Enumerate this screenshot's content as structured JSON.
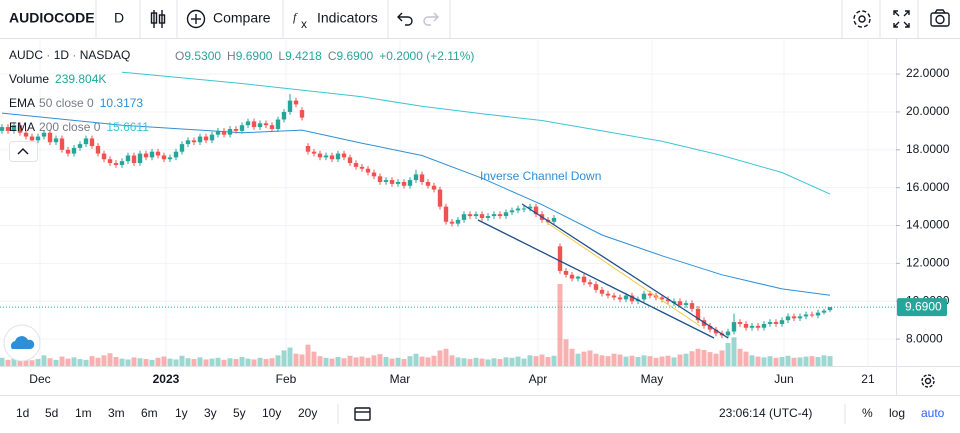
{
  "toolbar": {
    "symbol": "AUDIOCODE",
    "interval": "D",
    "compare": "Compare",
    "indicators": "Indicators"
  },
  "legend": {
    "symbol": "AUDC",
    "interval": "1D",
    "exchange": "NASDAQ",
    "ohlc": [
      {
        "key": "O",
        "value": "9.5300"
      },
      {
        "key": "H",
        "value": "9.6900"
      },
      {
        "key": "L",
        "value": "9.4218"
      },
      {
        "key": "C",
        "value": "9.6900"
      }
    ],
    "change": "+0.2000 (+2.11%)",
    "volume": {
      "name": "Volume",
      "value": "239.804K"
    },
    "indicators": [
      {
        "name": "EMA",
        "params": "50 close 0",
        "value": "10.3173",
        "color": "#2e8fd8"
      },
      {
        "name": "EMA",
        "params": "200 close 0",
        "value": "15.6611",
        "color": "#3cc6d4"
      }
    ]
  },
  "chart_data": {
    "type": "candlestick",
    "up_color": "#26a69a",
    "down_color": "#ef5350",
    "grid": true,
    "ylim": [
      6.58,
      23.8
    ],
    "yticks": [
      {
        "value": 8,
        "label": "8.0000"
      },
      {
        "value": 10,
        "label": "10.0000"
      },
      {
        "value": 12,
        "label": "12.0000"
      },
      {
        "value": 14,
        "label": "14.0000"
      },
      {
        "value": 16,
        "label": "16.0000"
      },
      {
        "value": 18,
        "label": "18.0000"
      },
      {
        "value": 20,
        "label": "20.0000"
      },
      {
        "value": 22,
        "label": "22.0000"
      }
    ],
    "xlim": [
      -0.333,
      149
    ],
    "xticks": [
      {
        "value": 6.33,
        "label": "Dec"
      },
      {
        "value": 27.33,
        "label": "2023"
      },
      {
        "value": 47.33,
        "label": "Feb"
      },
      {
        "value": 66.33,
        "label": "Mar"
      },
      {
        "value": 89.33,
        "label": "Apr"
      },
      {
        "value": 108.33,
        "label": "May"
      },
      {
        "value": 130.33,
        "label": "Jun"
      },
      {
        "value": 144.33,
        "label": "21"
      }
    ],
    "ohlc": [
      [
        19.0,
        19.35,
        18.85,
        19.2
      ],
      [
        19.2,
        19.35,
        18.85,
        19.0
      ],
      [
        19.0,
        19.45,
        18.85,
        19.3
      ],
      [
        19.3,
        19.45,
        18.75,
        18.9
      ],
      [
        18.9,
        19.05,
        18.55,
        18.7
      ],
      [
        18.7,
        18.85,
        18.35,
        18.5
      ],
      [
        18.5,
        18.85,
        18.35,
        18.7
      ],
      [
        18.7,
        19.05,
        18.55,
        18.9
      ],
      [
        18.9,
        19.05,
        18.25,
        18.4
      ],
      [
        18.4,
        18.75,
        18.25,
        18.6
      ],
      [
        18.6,
        18.75,
        17.85,
        18.0
      ],
      [
        18.0,
        18.15,
        17.65,
        17.8
      ],
      [
        17.8,
        18.25,
        17.65,
        18.1
      ],
      [
        18.1,
        18.45,
        17.95,
        18.3
      ],
      [
        18.3,
        18.75,
        18.15,
        18.6
      ],
      [
        18.6,
        18.75,
        18.05,
        18.2
      ],
      [
        18.2,
        18.35,
        17.65,
        17.8
      ],
      [
        17.8,
        17.95,
        17.35,
        17.5
      ],
      [
        17.5,
        17.65,
        17.15,
        17.3
      ],
      [
        17.3,
        17.45,
        17.05,
        17.2
      ],
      [
        17.2,
        17.55,
        17.05,
        17.4
      ],
      [
        17.4,
        17.85,
        17.25,
        17.7
      ],
      [
        17.7,
        17.85,
        17.15,
        17.3
      ],
      [
        17.3,
        17.95,
        17.15,
        17.8
      ],
      [
        17.8,
        17.95,
        17.45,
        17.6
      ],
      [
        17.6,
        18.05,
        17.45,
        17.9
      ],
      [
        17.9,
        18.05,
        17.55,
        17.7
      ],
      [
        17.7,
        17.85,
        17.35,
        17.5
      ],
      [
        17.5,
        17.75,
        17.35,
        17.6
      ],
      [
        17.6,
        18.05,
        17.45,
        17.9
      ],
      [
        17.9,
        18.45,
        17.75,
        18.3
      ],
      [
        18.3,
        18.65,
        18.15,
        18.5
      ],
      [
        18.5,
        18.65,
        18.25,
        18.4
      ],
      [
        18.4,
        18.85,
        18.25,
        18.7
      ],
      [
        18.7,
        18.85,
        18.35,
        18.5
      ],
      [
        18.5,
        18.95,
        18.35,
        18.8
      ],
      [
        18.8,
        19.15,
        18.65,
        19.0
      ],
      [
        19.0,
        19.15,
        18.65,
        18.8
      ],
      [
        18.8,
        19.25,
        18.65,
        19.1
      ],
      [
        19.1,
        19.25,
        18.85,
        19.0
      ],
      [
        19.0,
        19.45,
        18.85,
        19.3
      ],
      [
        19.3,
        19.65,
        19.15,
        19.5
      ],
      [
        19.5,
        19.65,
        19.05,
        19.2
      ],
      [
        19.2,
        19.55,
        19.05,
        19.4
      ],
      [
        19.4,
        19.55,
        19.15,
        19.3
      ],
      [
        19.3,
        19.45,
        18.95,
        19.1
      ],
      [
        19.1,
        19.75,
        18.95,
        19.6
      ],
      [
        19.6,
        20.15,
        19.45,
        20.0
      ],
      [
        20.0,
        20.95,
        19.85,
        20.6
      ],
      [
        20.6,
        20.75,
        20.25,
        20.4
      ],
      [
        20.1,
        20.25,
        19.55,
        19.7
      ],
      [
        18.2,
        18.35,
        17.75,
        17.9
      ],
      [
        17.9,
        18.05,
        17.65,
        17.8
      ],
      [
        17.8,
        17.95,
        17.45,
        17.6
      ],
      [
        17.6,
        17.85,
        17.45,
        17.7
      ],
      [
        17.7,
        17.85,
        17.35,
        17.5
      ],
      [
        17.5,
        17.95,
        17.35,
        17.8
      ],
      [
        17.8,
        17.95,
        17.45,
        17.6
      ],
      [
        17.6,
        17.75,
        17.15,
        17.3
      ],
      [
        17.3,
        17.45,
        16.95,
        17.1
      ],
      [
        17.1,
        17.25,
        16.85,
        17.0
      ],
      [
        17.0,
        17.15,
        16.65,
        16.8
      ],
      [
        16.8,
        16.95,
        16.45,
        16.6
      ],
      [
        16.6,
        16.75,
        16.15,
        16.3
      ],
      [
        16.3,
        16.55,
        16.15,
        16.4
      ],
      [
        16.4,
        16.55,
        16.05,
        16.2
      ],
      [
        16.2,
        16.45,
        16.05,
        16.3
      ],
      [
        16.3,
        16.45,
        15.95,
        16.1
      ],
      [
        16.1,
        16.55,
        15.95,
        16.4
      ],
      [
        16.4,
        16.95,
        16.25,
        16.7
      ],
      [
        16.7,
        16.85,
        16.15,
        16.3
      ],
      [
        16.3,
        16.45,
        15.95,
        16.1
      ],
      [
        16.1,
        16.25,
        15.75,
        15.9
      ],
      [
        15.9,
        16.05,
        14.85,
        15.0
      ],
      [
        15.0,
        15.15,
        14.05,
        14.2
      ],
      [
        14.2,
        14.35,
        13.95,
        14.1
      ],
      [
        14.1,
        14.45,
        13.95,
        14.3
      ],
      [
        14.3,
        14.75,
        14.15,
        14.6
      ],
      [
        14.6,
        14.75,
        14.35,
        14.5
      ],
      [
        14.5,
        14.75,
        14.35,
        14.6
      ],
      [
        14.6,
        14.75,
        14.25,
        14.4
      ],
      [
        14.4,
        14.65,
        14.25,
        14.5
      ],
      [
        14.5,
        14.75,
        14.35,
        14.6
      ],
      [
        14.6,
        14.75,
        14.35,
        14.5
      ],
      [
        14.5,
        14.85,
        14.35,
        14.7
      ],
      [
        14.7,
        14.95,
        14.55,
        14.8
      ],
      [
        14.8,
        15.05,
        14.65,
        14.9
      ],
      [
        14.85,
        15.05,
        14.7,
        14.9
      ],
      [
        14.9,
        15.15,
        14.75,
        15.0
      ],
      [
        15.0,
        15.15,
        14.45,
        14.6
      ],
      [
        14.6,
        14.75,
        14.15,
        14.3
      ],
      [
        14.3,
        14.45,
        14.05,
        14.2
      ],
      [
        14.2,
        14.55,
        14.05,
        14.4
      ],
      [
        12.9,
        13.05,
        11.45,
        11.6
      ],
      [
        11.6,
        11.75,
        11.25,
        11.4
      ],
      [
        11.4,
        11.55,
        11.05,
        11.2
      ],
      [
        11.2,
        11.35,
        11.05,
        11.3
      ],
      [
        11.3,
        11.45,
        10.85,
        11.0
      ],
      [
        11.0,
        11.15,
        10.75,
        10.9
      ],
      [
        10.9,
        11.05,
        10.45,
        10.6
      ],
      [
        10.6,
        10.75,
        10.25,
        10.4
      ],
      [
        10.4,
        10.55,
        10.15,
        10.3
      ],
      [
        10.3,
        10.45,
        10.05,
        10.2
      ],
      [
        10.2,
        10.35,
        9.95,
        10.1
      ],
      [
        10.1,
        10.45,
        9.95,
        10.3
      ],
      [
        10.3,
        10.45,
        9.85,
        10.0
      ],
      [
        10.0,
        10.25,
        9.85,
        10.1
      ],
      [
        10.1,
        10.55,
        9.95,
        10.4
      ],
      [
        10.4,
        10.55,
        10.15,
        10.3
      ],
      [
        10.3,
        10.45,
        10.05,
        10.2
      ],
      [
        10.2,
        10.35,
        9.95,
        10.1
      ],
      [
        10.1,
        10.25,
        9.85,
        10.0
      ],
      [
        9.9,
        10.15,
        9.75,
        10.0
      ],
      [
        10.0,
        10.15,
        9.65,
        9.8
      ],
      [
        9.8,
        10.05,
        9.65,
        9.9
      ],
      [
        9.9,
        10.05,
        9.45,
        9.6
      ],
      [
        9.6,
        9.75,
        8.85,
        9.0
      ],
      [
        9.0,
        9.15,
        8.55,
        8.7
      ],
      [
        8.7,
        8.85,
        8.35,
        8.5
      ],
      [
        8.5,
        8.65,
        8.15,
        8.3
      ],
      [
        8.3,
        8.45,
        8.05,
        8.2
      ],
      [
        8.2,
        8.55,
        8.05,
        8.4
      ],
      [
        8.4,
        9.35,
        8.25,
        8.9
      ],
      [
        8.9,
        9.05,
        8.65,
        8.8
      ],
      [
        8.8,
        8.95,
        8.45,
        8.6
      ],
      [
        8.6,
        8.85,
        8.45,
        8.7
      ],
      [
        8.7,
        8.85,
        8.45,
        8.6
      ],
      [
        8.6,
        8.95,
        8.45,
        8.8
      ],
      [
        8.8,
        9.05,
        8.65,
        8.9
      ],
      [
        8.9,
        9.05,
        8.65,
        8.8
      ],
      [
        8.8,
        9.15,
        8.65,
        9.0
      ],
      [
        9.0,
        9.35,
        8.85,
        9.2
      ],
      [
        9.2,
        9.35,
        8.95,
        9.1
      ],
      [
        9.1,
        9.35,
        8.95,
        9.2
      ],
      [
        9.2,
        9.45,
        9.05,
        9.3
      ],
      [
        9.3,
        9.45,
        9.15,
        9.25
      ],
      [
        9.25,
        9.55,
        9.1,
        9.4
      ],
      [
        9.4,
        9.6,
        9.3,
        9.5
      ],
      [
        9.53,
        9.69,
        9.4218,
        9.69
      ]
    ],
    "volume": [
      200000,
      150000,
      180000,
      220000,
      160000,
      140000,
      170000,
      260000,
      190000,
      150000,
      230000,
      180000,
      210000,
      170000,
      150000,
      240000,
      200000,
      260000,
      310000,
      220000,
      180000,
      160000,
      210000,
      190000,
      170000,
      150000,
      200000,
      230000,
      180000,
      160000,
      250000,
      190000,
      170000,
      210000,
      160000,
      180000,
      200000,
      150000,
      190000,
      170000,
      220000,
      180000,
      160000,
      200000,
      170000,
      190000,
      260000,
      380000,
      450000,
      300000,
      280000,
      520000,
      350000,
      240000,
      200000,
      180000,
      220000,
      190000,
      250000,
      210000,
      230000,
      200000,
      260000,
      290000,
      220000,
      180000,
      200000,
      170000,
      240000,
      300000,
      230000,
      210000,
      250000,
      380000,
      420000,
      260000,
      210000,
      190000,
      170000,
      200000,
      180000,
      160000,
      190000,
      170000,
      210000,
      200000,
      230000,
      180000,
      260000,
      240000,
      280000,
      220000,
      250000,
      2000000,
      650000,
      420000,
      300000,
      350000,
      380000,
      300000,
      260000,
      240000,
      300000,
      280000,
      230000,
      250000,
      220000,
      260000,
      240000,
      200000,
      230000,
      250000,
      210000,
      280000,
      300000,
      360000,
      420000,
      390000,
      340000,
      300000,
      380000,
      560000,
      700000,
      420000,
      350000,
      260000,
      230000,
      210000,
      240000,
      200000,
      220000,
      250000,
      200000,
      210000,
      230000,
      240000,
      220000,
      260000,
      239804
    ],
    "series": [
      {
        "color": "#2e8fd8",
        "x": [
          0,
          20,
          40,
          50,
          60,
          70,
          80,
          90,
          100,
          110,
          120,
          130,
          138
        ],
        "values": [
          19.94,
          19.3,
          18.9,
          19.04,
          18.35,
          17.7,
          16.5,
          15.1,
          13.5,
          12.4,
          11.4,
          10.65,
          10.32
        ]
      },
      {
        "color": "#3cc6d4",
        "x": [
          20,
          40,
          60,
          70,
          80,
          90,
          100,
          110,
          120,
          130,
          138
        ],
        "values": [
          22.1,
          21.5,
          20.8,
          20.3,
          19.9,
          19.55,
          19.0,
          18.45,
          17.7,
          16.8,
          15.66
        ]
      }
    ],
    "annotation": "Inverse Channel Down",
    "last_price": {
      "value": 9.69,
      "label": "9.6900"
    }
  },
  "bottom_bar": {
    "ranges": [
      "1d",
      "5d",
      "1m",
      "3m",
      "6m",
      "1y",
      "3y",
      "5y",
      "10y",
      "20y"
    ],
    "time": "23:06:14 (UTC-4)",
    "percent": "%",
    "log": "log",
    "auto": "auto"
  }
}
